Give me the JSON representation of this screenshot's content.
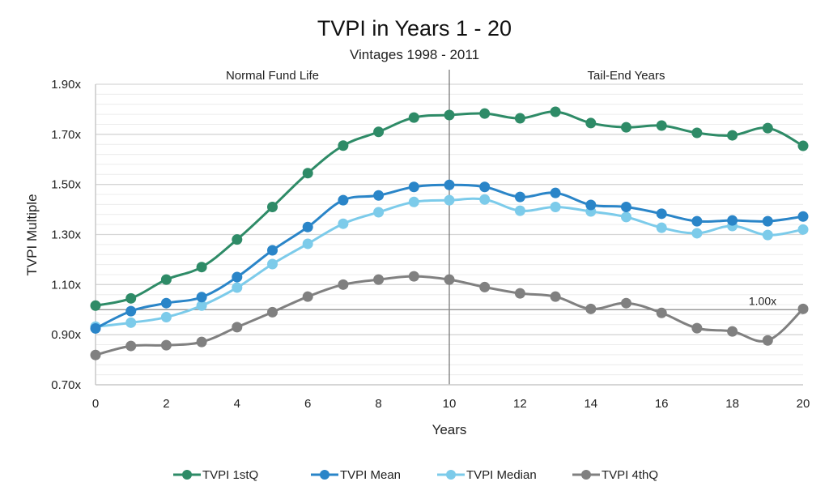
{
  "chart_data": {
    "type": "line",
    "title": "TVPI in Years 1 - 20",
    "subtitle": "Vintages 1998 - 2011",
    "xlabel": "Years",
    "ylabel": "TVPI Multiple",
    "x": [
      0,
      1,
      2,
      3,
      4,
      5,
      6,
      7,
      8,
      9,
      10,
      11,
      12,
      13,
      14,
      15,
      16,
      17,
      18,
      19,
      20
    ],
    "xlim": [
      0,
      20
    ],
    "ylim": [
      0.7,
      1.9
    ],
    "x_ticks": [
      0,
      2,
      4,
      6,
      8,
      10,
      12,
      14,
      16,
      18,
      20
    ],
    "x_tick_labels": [
      "0",
      "2",
      "4",
      "6",
      "8",
      "10",
      "12",
      "14",
      "16",
      "18",
      "20"
    ],
    "y_ticks": [
      0.7,
      0.9,
      1.1,
      1.3,
      1.5,
      1.7,
      1.9
    ],
    "y_tick_labels": [
      "0.70x",
      "0.90x",
      "1.10x",
      "1.30x",
      "1.50x",
      "1.70x",
      "1.90x"
    ],
    "y_minor_step": 0.04,
    "grid": true,
    "legend_position": "bottom",
    "regions": [
      {
        "label": "Normal Fund Life",
        "x_from": 0,
        "x_to": 10
      },
      {
        "label": "Tail-End Years",
        "x_from": 10,
        "x_to": 20
      }
    ],
    "vertical_divider_x": 10,
    "reference_line": {
      "y": 1.0,
      "label": "1.00x"
    },
    "series": [
      {
        "name": "TVPI 1stQ",
        "color": "#2e8b67",
        "values": [
          1.016,
          1.045,
          1.12,
          1.17,
          1.28,
          1.41,
          1.545,
          1.655,
          1.71,
          1.767,
          1.777,
          1.783,
          1.764,
          1.79,
          1.745,
          1.728,
          1.735,
          1.706,
          1.696,
          1.725,
          1.654
        ]
      },
      {
        "name": "TVPI Mean",
        "color": "#2a85c8",
        "values": [
          0.925,
          0.994,
          1.026,
          1.05,
          1.13,
          1.237,
          1.33,
          1.437,
          1.456,
          1.49,
          1.498,
          1.49,
          1.45,
          1.466,
          1.418,
          1.41,
          1.383,
          1.353,
          1.356,
          1.353,
          1.372
        ]
      },
      {
        "name": "TVPI Median",
        "color": "#7ccbea",
        "values": [
          0.932,
          0.948,
          0.97,
          1.016,
          1.088,
          1.182,
          1.263,
          1.343,
          1.389,
          1.43,
          1.437,
          1.44,
          1.395,
          1.41,
          1.392,
          1.37,
          1.327,
          1.305,
          1.334,
          1.298,
          1.32
        ]
      },
      {
        "name": "TVPI 4thQ",
        "color": "#808080",
        "values": [
          0.819,
          0.855,
          0.858,
          0.871,
          0.93,
          0.99,
          1.052,
          1.1,
          1.12,
          1.133,
          1.12,
          1.09,
          1.065,
          1.052,
          1.003,
          1.026,
          0.987,
          0.926,
          0.913,
          0.877,
          1.003
        ]
      }
    ]
  }
}
